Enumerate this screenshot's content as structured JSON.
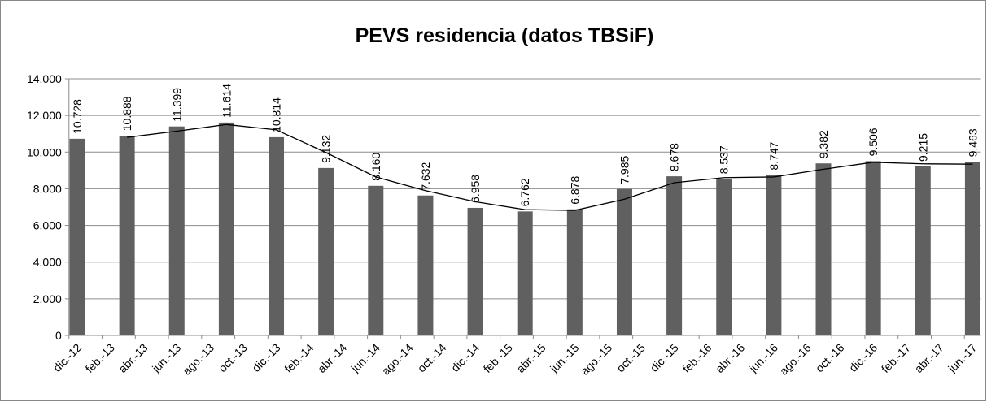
{
  "chart_data": {
    "type": "bar",
    "title": "PEVS residencia (datos TBSiF)",
    "categories": [
      "dic.-12",
      null,
      "feb.-13",
      null,
      "abr.-13",
      null,
      "jun.-13",
      null,
      "ago.-13",
      null,
      "oct.-13",
      null,
      "dic.-13",
      null,
      "feb.-14",
      null,
      "abr.-14",
      null,
      "jun.-14",
      null,
      "ago.-14",
      null,
      "oct.-14",
      null,
      "dic.-14",
      null,
      "feb.-15",
      null,
      "abr.-15",
      null,
      "jun.-15",
      null,
      "ago.-15",
      null,
      "oct.-15",
      null,
      "dic.-15",
      null,
      "feb.-16",
      null,
      "abr.-16",
      null,
      "jun.-16",
      null,
      "ago.-16",
      null,
      "oct.-16",
      null,
      "dic.-16",
      null,
      "feb.-17",
      null,
      "abr.-17",
      null,
      "jun.-17"
    ],
    "series": [
      {
        "type": "bar",
        "color": "#606060",
        "values": [
          10728,
          null,
          null,
          10888,
          null,
          null,
          11399,
          null,
          null,
          11614,
          null,
          null,
          10814,
          null,
          null,
          9132,
          null,
          null,
          8160,
          null,
          null,
          7632,
          null,
          null,
          6958,
          null,
          null,
          6762,
          null,
          null,
          6878,
          null,
          null,
          7985,
          null,
          null,
          8678,
          null,
          null,
          8537,
          null,
          null,
          8747,
          null,
          null,
          9382,
          null,
          null,
          9506,
          null,
          null,
          9215,
          null,
          null,
          9463
        ],
        "value_labels": [
          "10.728",
          null,
          null,
          "10.888",
          null,
          null,
          "11.399",
          null,
          null,
          "11.614",
          null,
          null,
          "10.814",
          null,
          null,
          "9.132",
          null,
          null,
          "8.160",
          null,
          null,
          "7.632",
          null,
          null,
          "6.958",
          null,
          null,
          "6.762",
          null,
          null,
          "6.878",
          null,
          null,
          "7.985",
          null,
          null,
          "8.678",
          null,
          null,
          "8.537",
          null,
          null,
          "8.747",
          null,
          null,
          "9.382",
          null,
          null,
          "9.506",
          null,
          null,
          "9.215",
          null,
          null,
          "9.463"
        ]
      },
      {
        "type": "line",
        "color": "#000000",
        "connect_gaps": true,
        "values": [
          null,
          null,
          null,
          10808,
          null,
          null,
          11143,
          null,
          null,
          11506,
          null,
          null,
          11214,
          null,
          null,
          9973,
          null,
          null,
          8646,
          null,
          null,
          7896,
          null,
          null,
          7295,
          null,
          null,
          6860,
          null,
          null,
          6820,
          null,
          null,
          7431,
          null,
          null,
          8331,
          null,
          null,
          8607,
          null,
          null,
          8642,
          null,
          null,
          9064,
          null,
          null,
          9444,
          null,
          null,
          9360,
          null,
          null,
          9339
        ]
      }
    ],
    "ylim": [
      0,
      14000
    ],
    "yticks": [
      0,
      {
        "value": 2000,
        "label": "2.000"
      },
      {
        "value": 4000,
        "label": "4.000"
      },
      {
        "value": 6000,
        "label": "6.000"
      },
      {
        "value": 8000,
        "label": "8.000"
      },
      {
        "value": 10000,
        "label": "10.000"
      },
      {
        "value": 12000,
        "label": "12.000"
      },
      {
        "value": 14000,
        "label": "14.000"
      }
    ],
    "grid": true
  }
}
